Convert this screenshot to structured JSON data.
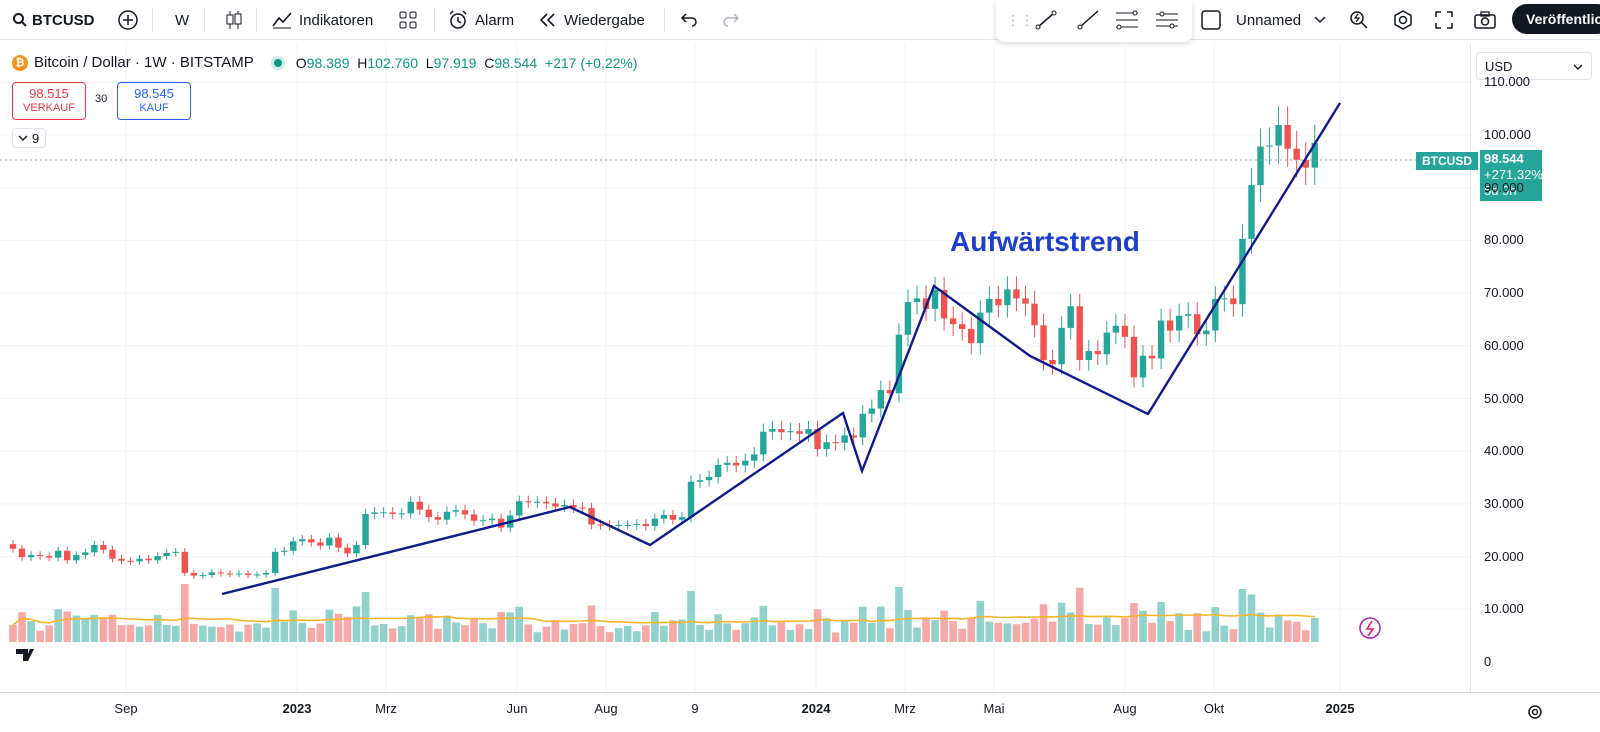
{
  "toolbar": {
    "symbol": "BTCUSD",
    "interval": "W",
    "indicators": "Indikatoren",
    "alarm": "Alarm",
    "replay": "Wiedergabe",
    "layout_name": "Unnamed",
    "publish": "Veröffentlichen"
  },
  "legend": {
    "title": "Bitcoin / Dollar · 1W · BITSTAMP",
    "o_label": "O",
    "o": "98.389",
    "h_label": "H",
    "h": "102.760",
    "l_label": "L",
    "l": "97.919",
    "c_label": "C",
    "c": "98.544",
    "change": "+217 (+0,22%)",
    "sell_price": "98.515",
    "sell_label": "VERKAUF",
    "spread": "30",
    "buy_price": "98.545",
    "buy_label": "KAUF",
    "collapse_count": "9"
  },
  "price_scale": {
    "currency": "USD",
    "labels": [
      "110.000",
      "100.000",
      "90.000",
      "80.000",
      "70.000",
      "60.000",
      "50.000",
      "40.000",
      "30.000",
      "20.000",
      "10.000",
      "0"
    ],
    "last_symbol": "BTCUSD",
    "last_price": "98.544",
    "last_change": "+271,32%",
    "countdown": "5d 9h"
  },
  "time_scale": {
    "labels": [
      "Sep",
      "2023",
      "Mrz",
      "Jun",
      "Aug",
      "9",
      "2024",
      "Mrz",
      "Mai",
      "Aug",
      "Okt",
      "2025"
    ]
  },
  "annotation": "Aufwärtstrend",
  "colors": {
    "up": "#26a69a",
    "down": "#ef5350",
    "trend": "#0f1a8c",
    "ma": "#f5b52a",
    "accent": "#2962ff"
  },
  "chart_data": {
    "type": "candlestick",
    "symbol": "BTCUSD",
    "interval": "1W",
    "ylim": [
      0,
      115000
    ],
    "closes": [
      21500,
      19900,
      20300,
      20100,
      19800,
      21100,
      19300,
      20300,
      20800,
      22200,
      21300,
      19600,
      19200,
      19100,
      19600,
      19300,
      20100,
      20700,
      20900,
      16900,
      16400,
      16500,
      17000,
      16800,
      16700,
      16800,
      16500,
      16600,
      16900,
      20900,
      21100,
      22900,
      23300,
      22700,
      22100,
      23600,
      21700,
      20600,
      22200,
      28100,
      28400,
      28400,
      28100,
      28200,
      30400,
      28900,
      27500,
      27000,
      28500,
      28800,
      28000,
      26800,
      26900,
      27200,
      25500,
      27800,
      30500,
      30300,
      30400,
      30100,
      29500,
      29800,
      29300,
      29200,
      26100,
      26000,
      25800,
      26000,
      26000,
      26200,
      25800,
      27200,
      27900,
      27000,
      27500,
      34200,
      34500,
      35100,
      37400,
      37800,
      37300,
      38200,
      39400,
      43700,
      44200,
      43600,
      43800,
      43300,
      44200,
      40400,
      41700,
      41600,
      43000,
      42600,
      47100,
      48100,
      51600,
      51000,
      62100,
      68300,
      69000,
      67000,
      70600,
      65200,
      64100,
      63200,
      60500,
      66300,
      68900,
      67700,
      70700,
      69000,
      68000,
      63900,
      57300,
      56500,
      63400,
      67500,
      57300,
      59000,
      58400,
      62500,
      63800,
      61700,
      54000,
      58100,
      57600,
      64800,
      62900,
      65700,
      66000,
      62200,
      62900,
      68900,
      69000,
      67900,
      80300,
      90500,
      97800,
      98000,
      101900,
      97400,
      95300,
      93800,
      98500
    ],
    "ma_visible": true
  }
}
